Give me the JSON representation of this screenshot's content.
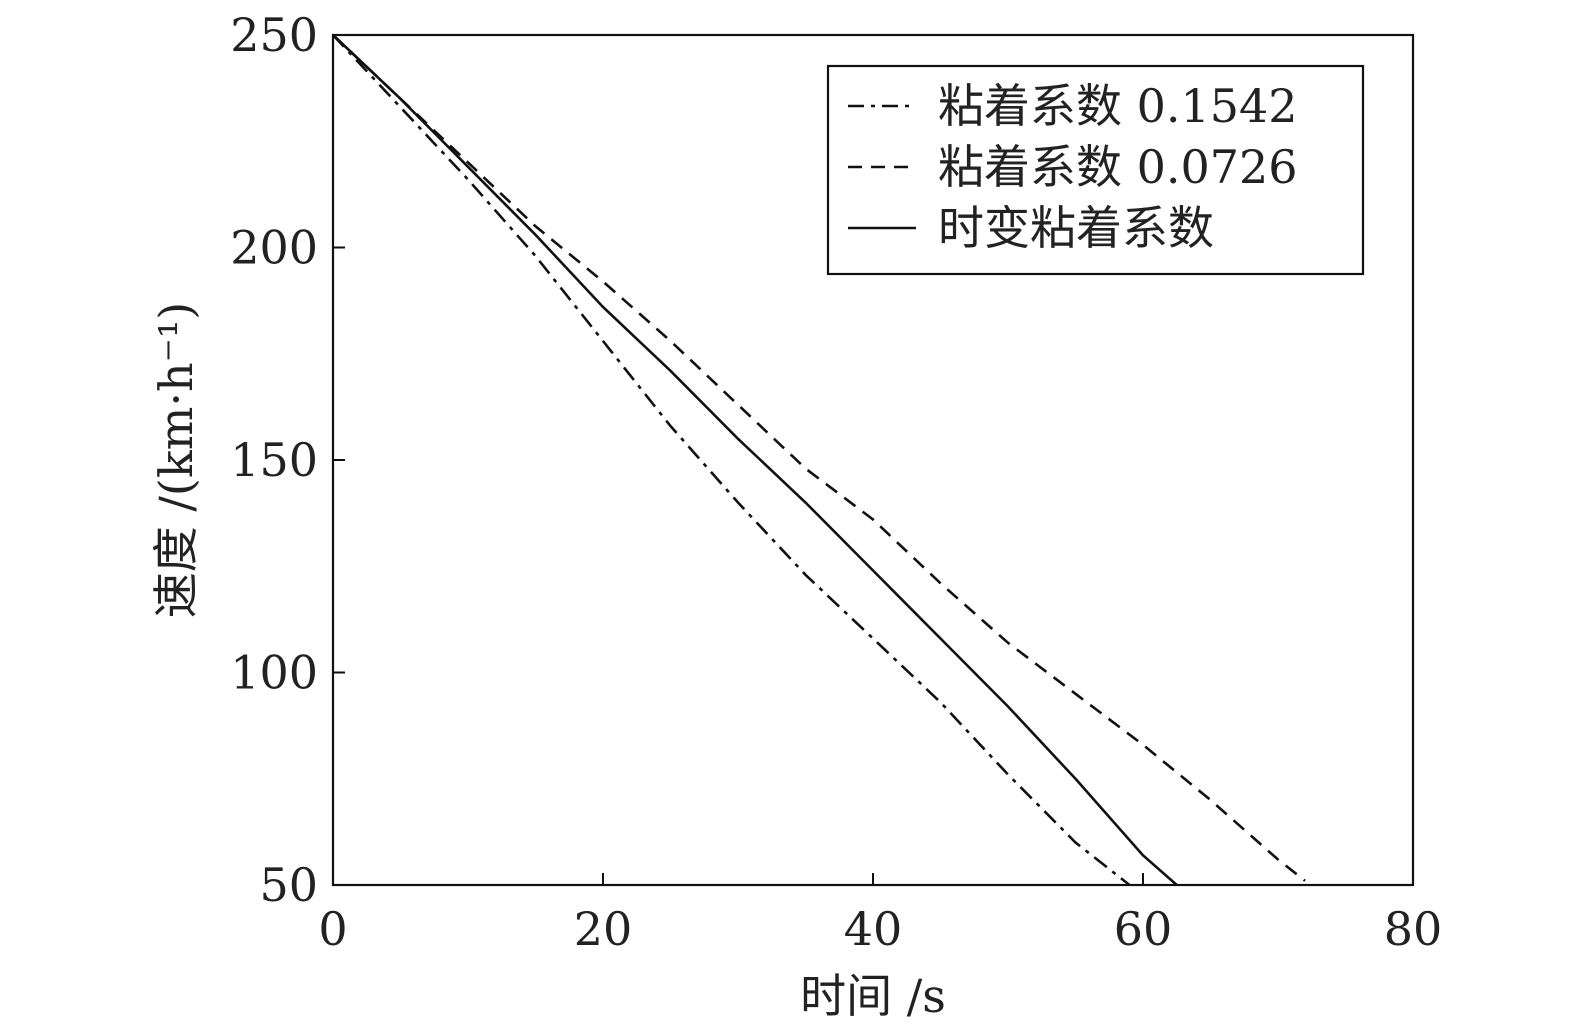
{
  "chart_data": {
    "type": "line",
    "xlabel": "时间 /s",
    "ylabel": "速度 /(km·h⁻¹)",
    "xlim": [
      0,
      80
    ],
    "ylim": [
      50,
      250
    ],
    "xticks": [
      0,
      20,
      40,
      60,
      80
    ],
    "yticks": [
      50,
      100,
      150,
      200,
      250
    ],
    "grid": false,
    "legend_position": "top-right",
    "series": [
      {
        "name": "粘着系数 0.1542",
        "style": "dashdot",
        "x": [
          0,
          5,
          10,
          15,
          20,
          25,
          30,
          35,
          40,
          45,
          50,
          55,
          59
        ],
        "y": [
          250,
          233,
          216,
          198,
          178,
          158,
          140,
          123,
          108,
          93,
          76,
          60,
          50
        ]
      },
      {
        "name": "粘着系数 0.0726",
        "style": "dashed",
        "x": [
          0,
          5,
          10,
          15,
          20,
          25,
          30,
          35,
          40,
          45,
          50,
          55,
          60,
          65,
          70,
          72
        ],
        "y": [
          250,
          235,
          220,
          205,
          192,
          178,
          163,
          148,
          136,
          121,
          107,
          95,
          83,
          70,
          56,
          51
        ]
      },
      {
        "name": "时变粘着系数",
        "style": "solid",
        "x": [
          0,
          5,
          10,
          15,
          20,
          25,
          30,
          35,
          40,
          45,
          50,
          55,
          60,
          62.5
        ],
        "y": [
          250,
          235,
          219,
          203,
          186,
          171,
          155,
          140,
          124,
          108,
          92,
          75,
          57,
          50
        ]
      }
    ]
  }
}
